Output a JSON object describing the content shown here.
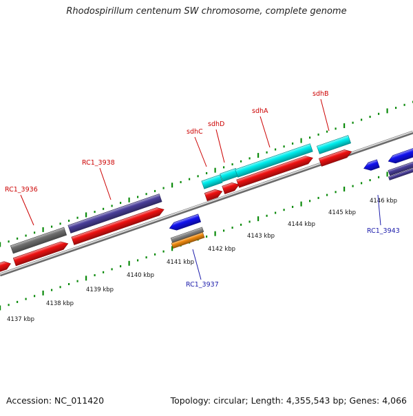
{
  "title": "Rhodospirillum centenum SW chromosome, complete genome",
  "footer": {
    "accession": "Accession: NC_011420",
    "summary": "Topology: circular; Length: 4,355,543 bp; Genes: 4,066"
  },
  "kbp_ticks": [
    "4137 kbp",
    "4138 kbp",
    "4139 kbp",
    "4140 kbp",
    "4141 kbp",
    "4142 kbp",
    "4143 kbp",
    "4144 kbp",
    "4145 kbp",
    "4146 kbp"
  ],
  "gene_labels": {
    "top": [
      "RC1_3936",
      "RC1_3938",
      "sdhC",
      "sdhD",
      "sdhA",
      "sdhB"
    ],
    "bottom": [
      "RC1_3937",
      "RC1_3943"
    ]
  },
  "colors": {
    "gene_top_label": "#cc0000",
    "gene_bottom_label": "#1a1aaa",
    "backbone": "#888888",
    "tick": "#0a8a0a",
    "cds_forward": "#ee1111",
    "cds_reverse": "#1111ee",
    "feature_cyan": "#00eeee",
    "feature_purple": "#4a3f9a",
    "feature_gray": "#6e6e6e",
    "feature_orange": "#f28c10"
  }
}
